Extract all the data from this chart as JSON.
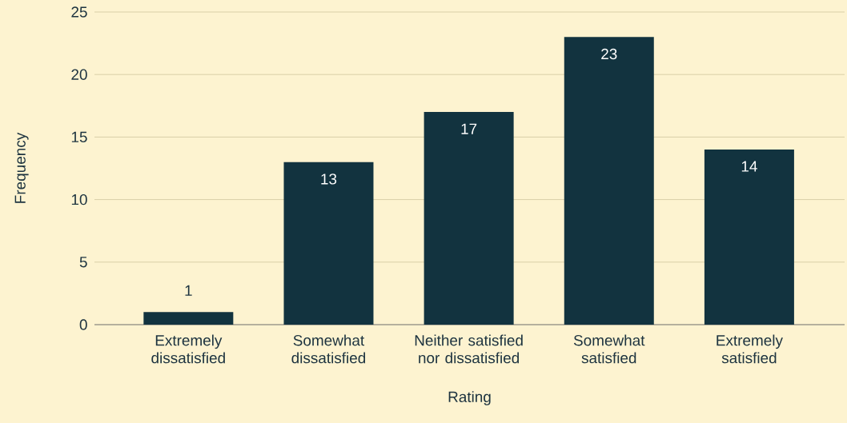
{
  "chart_data": {
    "type": "bar",
    "xlabel": "Rating",
    "ylabel": "Frequency",
    "categories": [
      "Extremely dissatisfied",
      "Somewhat dissatisfied",
      "Neither satisfied nor dissatisfied",
      "Somewhat satisfied",
      "Extremely satisfied"
    ],
    "values": [
      1,
      13,
      17,
      23,
      14
    ],
    "color": "#12333f",
    "ylim": [
      0,
      25
    ],
    "yticks": [
      0,
      5,
      10,
      15,
      20,
      25
    ],
    "grid": "y",
    "data_labels": true
  }
}
